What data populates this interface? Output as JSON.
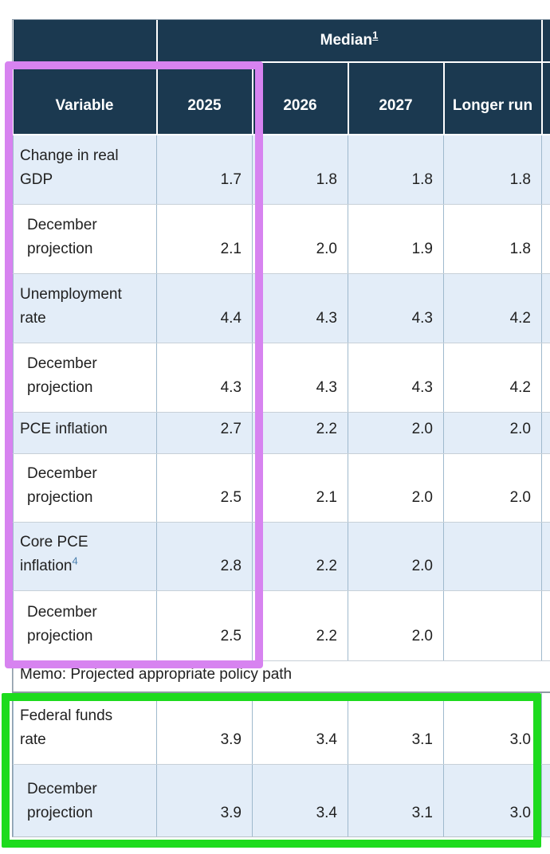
{
  "header": {
    "median_label": "Median",
    "median_footnote": "1",
    "columns": [
      "Variable",
      "2025",
      "2026",
      "2027",
      "Longer run"
    ]
  },
  "rows": [
    {
      "label": "Change in real GDP",
      "values": [
        "1.7",
        "1.8",
        "1.8",
        "1.8"
      ]
    },
    {
      "label": "December projection",
      "values": [
        "2.1",
        "2.0",
        "1.9",
        "1.8"
      ]
    },
    {
      "label": "Unemployment rate",
      "values": [
        "4.4",
        "4.3",
        "4.3",
        "4.2"
      ]
    },
    {
      "label": "December projection",
      "values": [
        "4.3",
        "4.3",
        "4.3",
        "4.2"
      ]
    },
    {
      "label": "PCE inflation",
      "values": [
        "2.7",
        "2.2",
        "2.0",
        "2.0"
      ]
    },
    {
      "label": "December projection",
      "values": [
        "2.5",
        "2.1",
        "2.0",
        "2.0"
      ]
    },
    {
      "label": "Core PCE inflation",
      "footnote": "4",
      "values": [
        "2.8",
        "2.2",
        "2.0",
        ""
      ]
    },
    {
      "label": "December projection",
      "values": [
        "2.5",
        "2.2",
        "2.0",
        ""
      ]
    }
  ],
  "memo": {
    "label": "Memo: Projected appropriate policy path"
  },
  "policy_rows": [
    {
      "label": "Federal funds rate",
      "values": [
        "3.9",
        "3.4",
        "3.1",
        "3.0"
      ]
    },
    {
      "label": "December projection",
      "values": [
        "3.9",
        "3.4",
        "3.1",
        "3.0"
      ]
    }
  ],
  "colors": {
    "header_bg": "#1b3950",
    "row_shade": "#e3edf8",
    "annotation_purple": "#d783f0",
    "annotation_green": "#1ddb1d",
    "link_blue": "#4a7fae"
  }
}
